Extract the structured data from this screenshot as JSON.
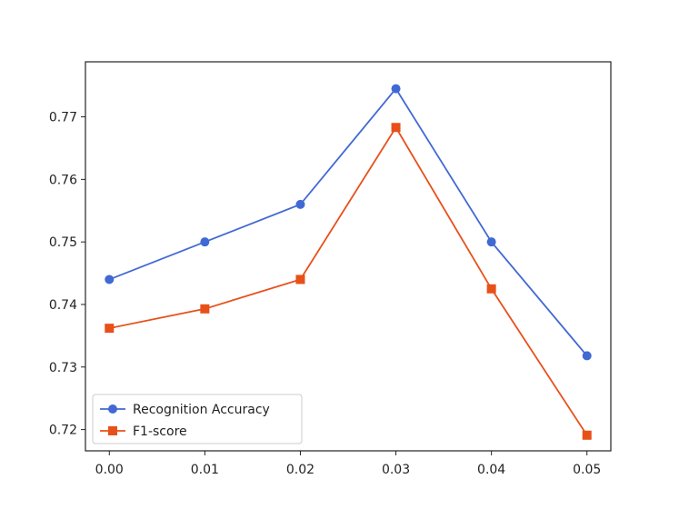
{
  "chart_data": {
    "type": "line",
    "title": "",
    "xlabel": "",
    "ylabel": "",
    "x": [
      "0.00",
      "0.01",
      "0.02",
      "0.03",
      "0.04",
      "0.05"
    ],
    "x_values": [
      0.0,
      0.01,
      0.02,
      0.03,
      0.04,
      0.05
    ],
    "xlim": [
      -0.0025,
      0.0525
    ],
    "ylim": [
      0.7166,
      0.7788
    ],
    "yticks": [
      "0.72",
      "0.73",
      "0.74",
      "0.75",
      "0.76",
      "0.77"
    ],
    "ytick_values": [
      0.72,
      0.73,
      0.74,
      0.75,
      0.76,
      0.77
    ],
    "grid": false,
    "legend_position": "lower-left",
    "series": [
      {
        "name": "Recognition Accuracy",
        "color": "#4169d4",
        "marker": "circle",
        "values": [
          0.744,
          0.75,
          0.756,
          0.7745,
          0.75,
          0.7318
        ]
      },
      {
        "name": "F1-score",
        "color": "#e8501a",
        "marker": "square",
        "values": [
          0.7362,
          0.7393,
          0.744,
          0.7683,
          0.7425,
          0.7191
        ]
      }
    ]
  }
}
